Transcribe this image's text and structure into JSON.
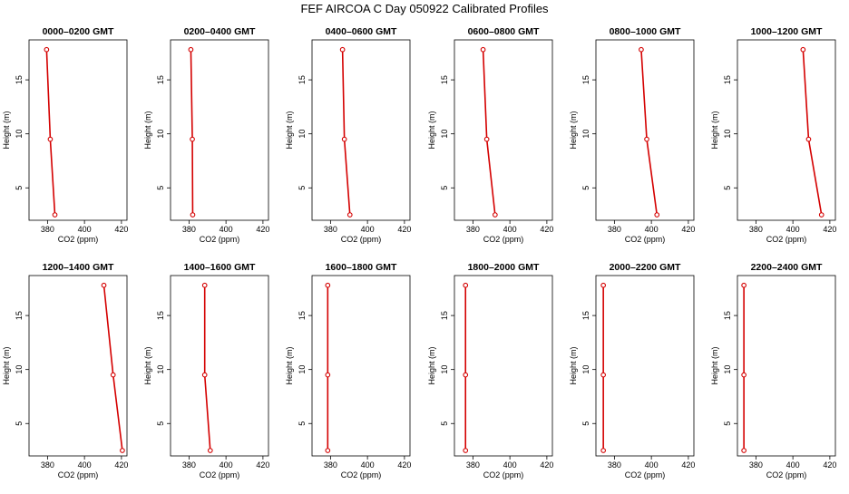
{
  "title": "FEF AIRCOA C  Day 050922  Calibrated Profiles",
  "chart_data": {
    "type": "line",
    "title": "FEF AIRCOA C  Day 050922  Calibrated Profiles",
    "xlabel": "CO2 (ppm)",
    "ylabel": "Height (m)",
    "xlim": [
      370,
      423
    ],
    "ylim": [
      2.0,
      18.7
    ],
    "xticks": [
      380,
      400,
      420
    ],
    "yticks": [
      5,
      10,
      15
    ],
    "grid": false,
    "line_color": "#d40000",
    "marker": "open-circle",
    "panels": [
      {
        "name": "0000–0200 GMT",
        "points": [
          {
            "x": 379.5,
            "y": 17.8
          },
          {
            "x": 381.5,
            "y": 9.5
          },
          {
            "x": 384.0,
            "y": 2.5
          }
        ]
      },
      {
        "name": "0200–0400 GMT",
        "points": [
          {
            "x": 381.0,
            "y": 17.8
          },
          {
            "x": 381.8,
            "y": 9.5
          },
          {
            "x": 382.0,
            "y": 2.5
          }
        ]
      },
      {
        "name": "0400–0600 GMT",
        "points": [
          {
            "x": 386.5,
            "y": 17.8
          },
          {
            "x": 387.5,
            "y": 9.5
          },
          {
            "x": 390.5,
            "y": 2.5
          }
        ]
      },
      {
        "name": "0600–0800 GMT",
        "points": [
          {
            "x": 385.5,
            "y": 17.8
          },
          {
            "x": 387.5,
            "y": 9.5
          },
          {
            "x": 392.0,
            "y": 2.5
          }
        ]
      },
      {
        "name": "0800–1000 GMT",
        "points": [
          {
            "x": 394.5,
            "y": 17.8
          },
          {
            "x": 397.5,
            "y": 9.5
          },
          {
            "x": 403.0,
            "y": 2.5
          }
        ]
      },
      {
        "name": "1000–1200 GMT",
        "points": [
          {
            "x": 405.5,
            "y": 17.8
          },
          {
            "x": 408.5,
            "y": 9.5
          },
          {
            "x": 415.5,
            "y": 2.5
          }
        ]
      },
      {
        "name": "1200–1400 GMT",
        "points": [
          {
            "x": 410.5,
            "y": 17.8
          },
          {
            "x": 415.5,
            "y": 9.5
          },
          {
            "x": 420.5,
            "y": 2.5
          }
        ]
      },
      {
        "name": "1400–1600 GMT",
        "points": [
          {
            "x": 388.5,
            "y": 17.8
          },
          {
            "x": 388.5,
            "y": 9.5
          },
          {
            "x": 391.5,
            "y": 2.5
          }
        ]
      },
      {
        "name": "1600–1800 GMT",
        "points": [
          {
            "x": 378.5,
            "y": 17.8
          },
          {
            "x": 378.5,
            "y": 9.5
          },
          {
            "x": 378.5,
            "y": 2.5
          }
        ]
      },
      {
        "name": "1800–2000 GMT",
        "points": [
          {
            "x": 376.0,
            "y": 17.8
          },
          {
            "x": 376.0,
            "y": 9.5
          },
          {
            "x": 376.0,
            "y": 2.5
          }
        ]
      },
      {
        "name": "2000–2200 GMT",
        "points": [
          {
            "x": 374.0,
            "y": 17.8
          },
          {
            "x": 374.0,
            "y": 9.5
          },
          {
            "x": 374.0,
            "y": 2.5
          }
        ]
      },
      {
        "name": "2200–2400 GMT",
        "points": [
          {
            "x": 373.5,
            "y": 17.8
          },
          {
            "x": 373.5,
            "y": 9.5
          },
          {
            "x": 373.5,
            "y": 2.5
          }
        ]
      }
    ]
  }
}
